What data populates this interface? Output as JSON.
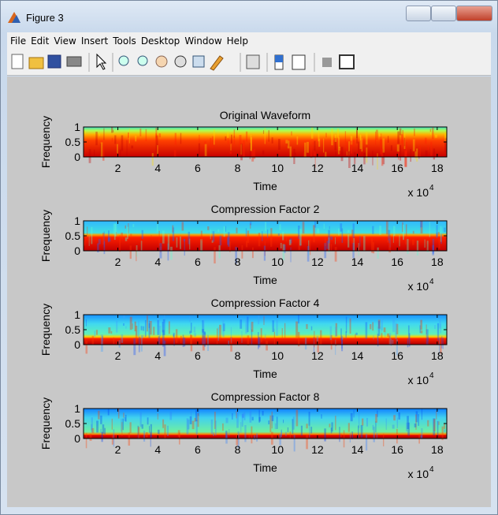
{
  "window": {
    "title": "Figure 3",
    "menu": [
      "File",
      "Edit",
      "View",
      "Insert",
      "Tools",
      "Desktop",
      "Window",
      "Help"
    ]
  },
  "chart_data": [
    {
      "type": "spectrogram",
      "title": "Original Waveform",
      "xlabel": "Time",
      "ylabel": "Frequency",
      "x_multiplier": {
        "base": "x 10",
        "exponent": "4"
      },
      "xlim": [
        2800,
        184800
      ],
      "ylim": [
        0,
        1
      ],
      "xticks": [
        {
          "value": 20000,
          "label": "2"
        },
        {
          "value": 40000,
          "label": "4"
        },
        {
          "value": 60000,
          "label": "6"
        },
        {
          "value": 80000,
          "label": "8"
        },
        {
          "value": 100000,
          "label": "10"
        },
        {
          "value": 120000,
          "label": "12"
        },
        {
          "value": 140000,
          "label": "14"
        },
        {
          "value": 160000,
          "label": "16"
        },
        {
          "value": 180000,
          "label": "18"
        }
      ],
      "yticks": [
        0,
        0.5,
        1
      ],
      "colormap": "jet"
    },
    {
      "type": "spectrogram",
      "title": "Compression Factor 2",
      "xlabel": "Time",
      "ylabel": "Frequency",
      "x_multiplier": {
        "base": "x 10",
        "exponent": "4"
      },
      "xlim": [
        2800,
        184800
      ],
      "ylim": [
        0,
        1
      ],
      "xticks": [
        {
          "value": 20000,
          "label": "2"
        },
        {
          "value": 40000,
          "label": "4"
        },
        {
          "value": 60000,
          "label": "6"
        },
        {
          "value": 80000,
          "label": "8"
        },
        {
          "value": 100000,
          "label": "10"
        },
        {
          "value": 120000,
          "label": "12"
        },
        {
          "value": 140000,
          "label": "14"
        },
        {
          "value": 160000,
          "label": "16"
        },
        {
          "value": 180000,
          "label": "18"
        }
      ],
      "yticks": [
        0,
        0.5,
        1
      ],
      "colormap": "jet"
    },
    {
      "type": "spectrogram",
      "title": "Compression Factor 4",
      "xlabel": "Time",
      "ylabel": "Frequency",
      "x_multiplier": {
        "base": "x 10",
        "exponent": "4"
      },
      "xlim": [
        2800,
        184800
      ],
      "ylim": [
        0,
        1
      ],
      "xticks": [
        {
          "value": 20000,
          "label": "2"
        },
        {
          "value": 40000,
          "label": "4"
        },
        {
          "value": 60000,
          "label": "6"
        },
        {
          "value": 80000,
          "label": "8"
        },
        {
          "value": 100000,
          "label": "10"
        },
        {
          "value": 120000,
          "label": "12"
        },
        {
          "value": 140000,
          "label": "14"
        },
        {
          "value": 160000,
          "label": "16"
        },
        {
          "value": 180000,
          "label": "18"
        }
      ],
      "yticks": [
        0,
        0.5,
        1
      ],
      "colormap": "jet"
    },
    {
      "type": "spectrogram",
      "title": "Compression Factor 8",
      "xlabel": "Time",
      "ylabel": "Frequency",
      "x_multiplier": {
        "base": "x 10",
        "exponent": "4"
      },
      "xlim": [
        2800,
        184800
      ],
      "ylim": [
        0,
        1
      ],
      "xticks": [
        {
          "value": 20000,
          "label": "2"
        },
        {
          "value": 40000,
          "label": "4"
        },
        {
          "value": 60000,
          "label": "6"
        },
        {
          "value": 80000,
          "label": "8"
        },
        {
          "value": 100000,
          "label": "10"
        },
        {
          "value": 120000,
          "label": "12"
        },
        {
          "value": 140000,
          "label": "14"
        },
        {
          "value": 160000,
          "label": "16"
        },
        {
          "value": 180000,
          "label": "18"
        }
      ],
      "yticks": [
        0,
        0.5,
        1
      ],
      "colormap": "jet"
    }
  ]
}
